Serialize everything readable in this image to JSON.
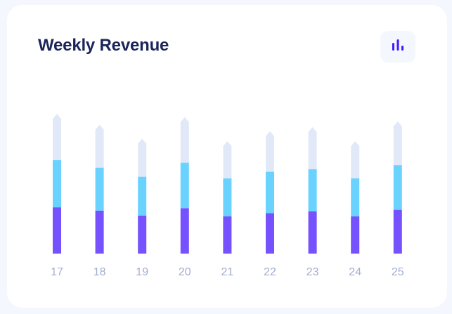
{
  "card": {
    "title": "Weekly Revenue"
  },
  "icon": "bar-chart-icon",
  "colors": {
    "background": "#f4f7fe",
    "card": "#ffffff",
    "title": "#1b2559",
    "accent": "#4318ff",
    "tick": "#a3aed0"
  },
  "chart_data": {
    "type": "bar",
    "stacked": true,
    "categories": [
      "17",
      "18",
      "19",
      "20",
      "21",
      "22",
      "23",
      "24",
      "25"
    ],
    "series": [
      {
        "color": "#7551ff",
        "values": [
          56,
          52,
          46,
          55,
          45,
          49,
          51,
          45,
          53
        ]
      },
      {
        "color": "#6ad2ff",
        "values": [
          57,
          52,
          47,
          55,
          46,
          50,
          51,
          46,
          54
        ]
      },
      {
        "color": "#e1e9f8",
        "values": [
          56,
          52,
          46,
          55,
          45,
          49,
          51,
          45,
          53
        ]
      }
    ],
    "ylim": [
      0,
      170
    ],
    "grid": false,
    "legend": "none"
  }
}
